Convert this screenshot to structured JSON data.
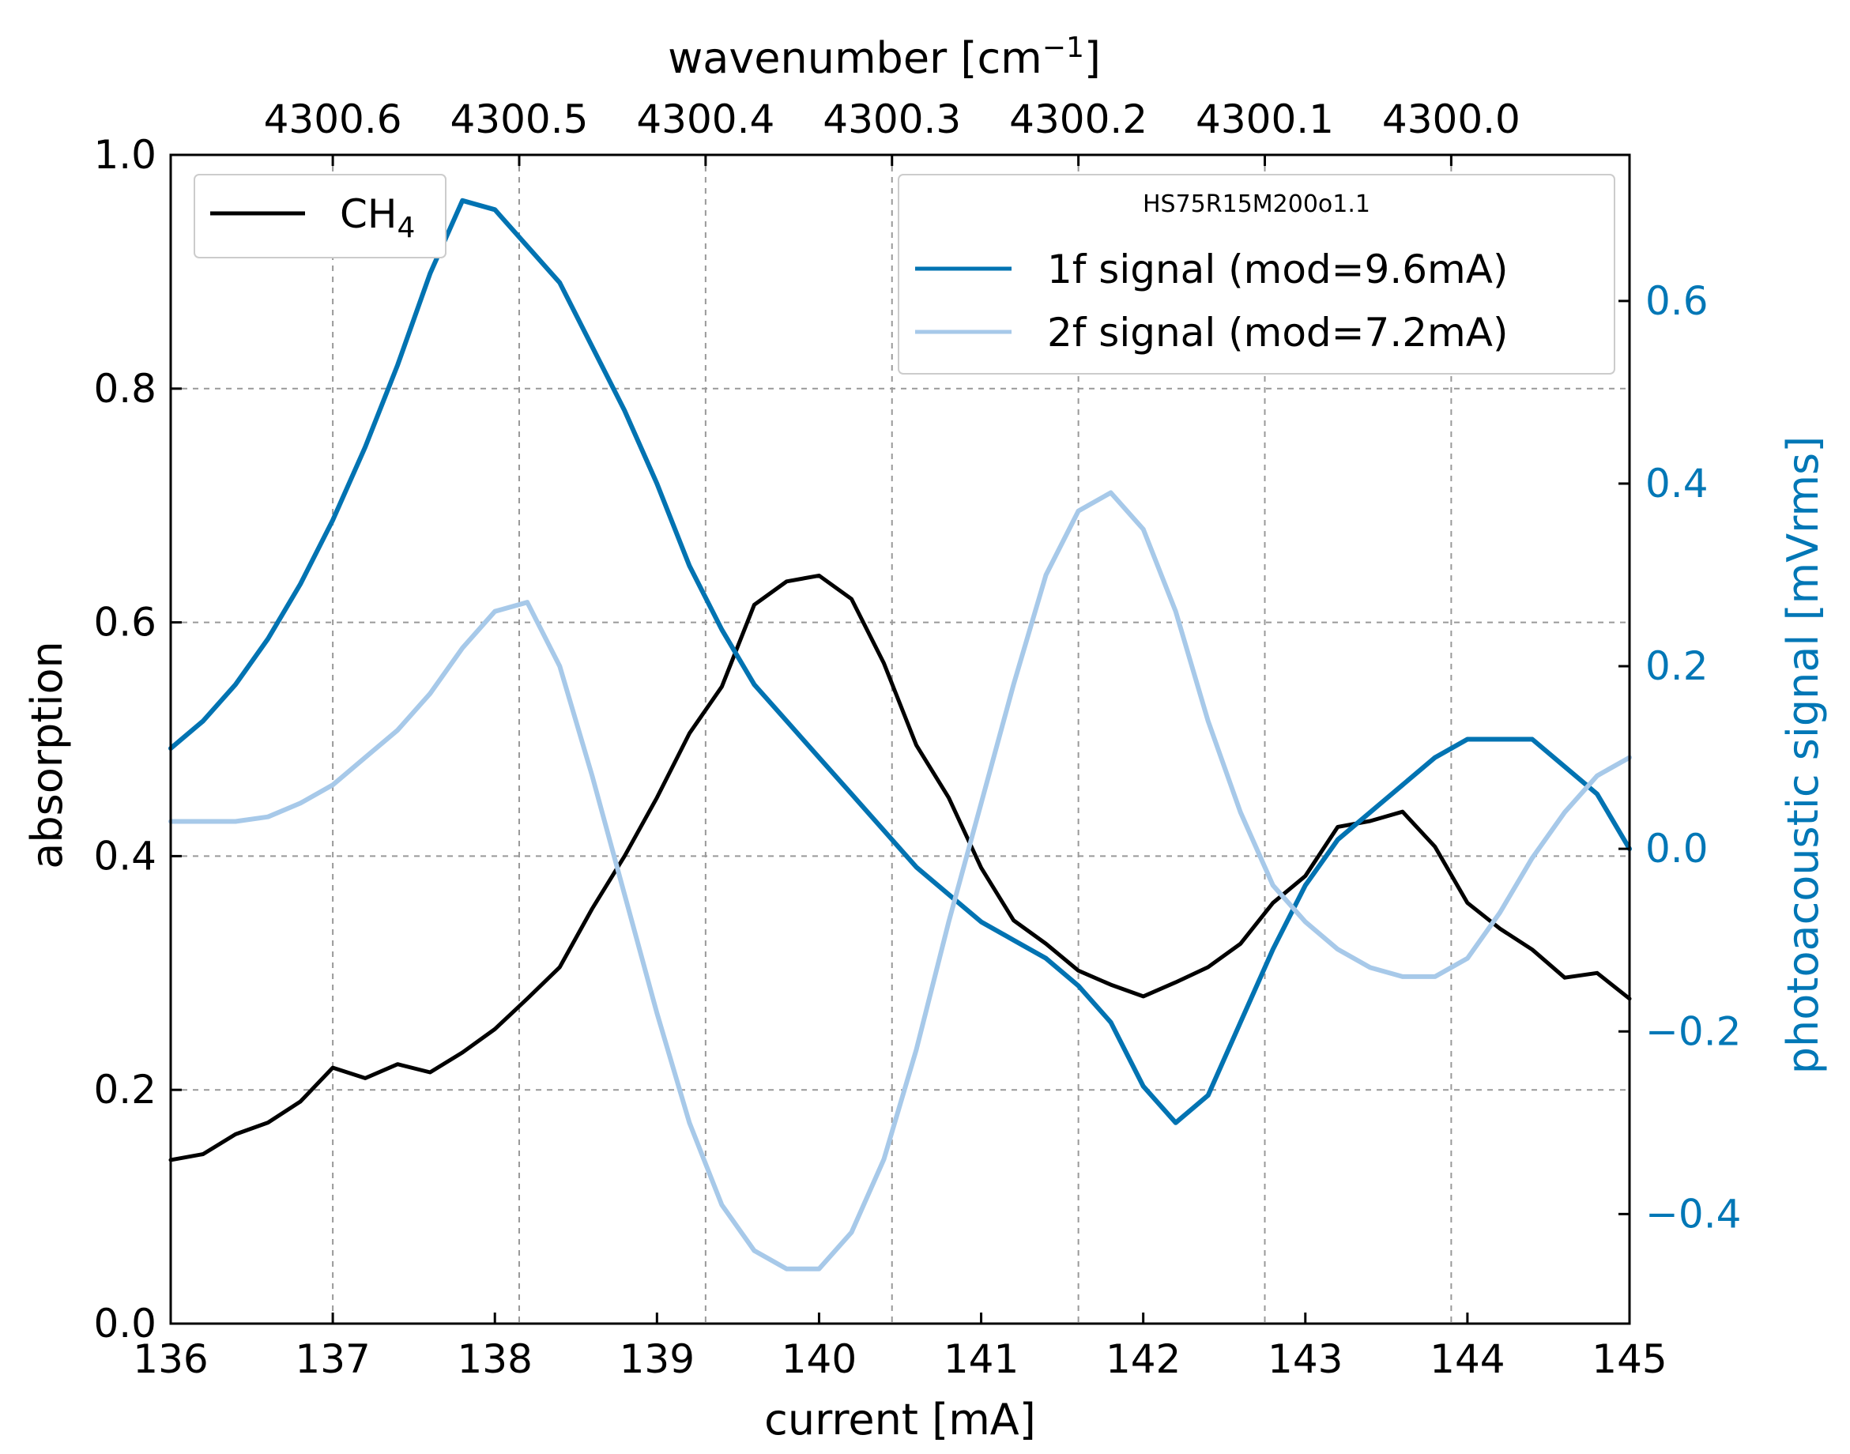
{
  "chart_data": {
    "type": "line",
    "x_axis": {
      "label": "current [mA]",
      "range": [
        136,
        145
      ],
      "ticks": [
        136,
        137,
        138,
        139,
        140,
        141,
        142,
        143,
        144,
        145
      ],
      "tick_labels": [
        "136",
        "137",
        "138",
        "139",
        "140",
        "141",
        "142",
        "143",
        "144",
        "145"
      ]
    },
    "top_axis": {
      "label_main": "wavenumber [cm",
      "label_sup": "−1",
      "label_end": "]",
      "ticks_current": [
        137.0,
        138.15,
        139.3,
        140.45,
        141.6,
        142.75,
        143.9
      ],
      "tick_labels": [
        "4300.6",
        "4300.5",
        "4300.4",
        "4300.3",
        "4300.2",
        "4300.1",
        "4300.0"
      ]
    },
    "y_axis_left": {
      "label": "absorption",
      "range": [
        0.0,
        1.0
      ],
      "ticks": [
        0.0,
        0.2,
        0.4,
        0.6,
        0.8,
        1.0
      ],
      "tick_labels": [
        "0.0",
        "0.2",
        "0.4",
        "0.6",
        "0.8",
        "1.0"
      ]
    },
    "y_axis_right": {
      "label": "photoacoustic signal [mVrms]",
      "range": [
        -0.52,
        0.76
      ],
      "ticks": [
        -0.4,
        -0.2,
        0.0,
        0.2,
        0.4,
        0.6
      ],
      "tick_labels": [
        "−0.4",
        "−0.2",
        "0.0",
        "0.2",
        "0.4",
        "0.6"
      ]
    },
    "grid": true,
    "series": [
      {
        "name": "CH4",
        "axis": "left",
        "color": "#000000",
        "x": [
          136.0,
          136.2,
          136.4,
          136.6,
          136.8,
          137.0,
          137.2,
          137.4,
          137.6,
          137.8,
          138.0,
          138.2,
          138.4,
          138.6,
          138.8,
          139.0,
          139.2,
          139.4,
          139.6,
          139.8,
          140.0,
          140.2,
          140.4,
          140.6,
          140.8,
          141.0,
          141.2,
          141.4,
          141.6,
          141.8,
          142.0,
          142.2,
          142.4,
          142.6,
          142.8,
          143.0,
          143.2,
          143.4,
          143.6,
          143.8,
          144.0,
          144.2,
          144.4,
          144.6,
          144.8,
          145.0
        ],
        "y": [
          0.14,
          0.145,
          0.162,
          0.172,
          0.19,
          0.219,
          0.21,
          0.222,
          0.215,
          0.232,
          0.252,
          0.278,
          0.305,
          0.355,
          0.4,
          0.45,
          0.505,
          0.545,
          0.615,
          0.635,
          0.64,
          0.62,
          0.565,
          0.495,
          0.45,
          0.39,
          0.345,
          0.325,
          0.302,
          0.29,
          0.28,
          0.292,
          0.305,
          0.325,
          0.36,
          0.383,
          0.425,
          0.43,
          0.438,
          0.408,
          0.36,
          0.338,
          0.32,
          0.296,
          0.3,
          0.278
        ]
      },
      {
        "name": "1f signal (mod=9.6mA)",
        "axis": "right",
        "color": "#0173b2",
        "x": [
          136.0,
          136.2,
          136.4,
          136.6,
          136.8,
          137.0,
          137.2,
          137.4,
          137.6,
          137.8,
          138.0,
          138.2,
          138.4,
          138.6,
          138.8,
          139.0,
          139.2,
          139.4,
          139.6,
          139.8,
          140.0,
          140.2,
          140.4,
          140.6,
          140.8,
          141.0,
          141.2,
          141.4,
          141.6,
          141.8,
          142.0,
          142.2,
          142.4,
          142.6,
          142.8,
          143.0,
          143.2,
          143.4,
          143.6,
          143.8,
          144.0,
          144.2,
          144.4,
          144.6,
          144.8,
          145.0
        ],
        "y": [
          0.11,
          0.14,
          0.18,
          0.23,
          0.29,
          0.36,
          0.44,
          0.53,
          0.63,
          0.71,
          0.7,
          0.66,
          0.62,
          0.55,
          0.48,
          0.4,
          0.31,
          0.24,
          0.18,
          0.14,
          0.1,
          0.06,
          0.02,
          -0.02,
          -0.05,
          -0.08,
          -0.1,
          -0.12,
          -0.15,
          -0.19,
          -0.26,
          -0.3,
          -0.27,
          -0.19,
          -0.11,
          -0.04,
          0.01,
          0.04,
          0.07,
          0.1,
          0.12,
          0.12,
          0.12,
          0.09,
          0.06,
          0.0
        ]
      },
      {
        "name": "2f signal (mod=7.2mA)",
        "axis": "right",
        "color": "#a7c9e9",
        "x": [
          136.0,
          136.2,
          136.4,
          136.6,
          136.8,
          137.0,
          137.2,
          137.4,
          137.6,
          137.8,
          138.0,
          138.2,
          138.4,
          138.6,
          138.8,
          139.0,
          139.2,
          139.4,
          139.6,
          139.8,
          140.0,
          140.2,
          140.4,
          140.6,
          140.8,
          141.0,
          141.2,
          141.4,
          141.6,
          141.8,
          142.0,
          142.2,
          142.4,
          142.6,
          142.8,
          143.0,
          143.2,
          143.4,
          143.6,
          143.8,
          144.0,
          144.2,
          144.4,
          144.6,
          144.8,
          145.0
        ],
        "y": [
          0.03,
          0.03,
          0.03,
          0.035,
          0.05,
          0.07,
          0.1,
          0.13,
          0.17,
          0.22,
          0.26,
          0.27,
          0.2,
          0.08,
          -0.05,
          -0.18,
          -0.3,
          -0.39,
          -0.44,
          -0.46,
          -0.46,
          -0.42,
          -0.34,
          -0.22,
          -0.08,
          0.05,
          0.18,
          0.3,
          0.37,
          0.39,
          0.35,
          0.26,
          0.14,
          0.04,
          -0.04,
          -0.08,
          -0.11,
          -0.13,
          -0.14,
          -0.14,
          -0.12,
          -0.07,
          -0.01,
          0.04,
          0.08,
          0.1
        ]
      }
    ],
    "legend_left": {
      "placement": "top-left",
      "entries": [
        {
          "label": "CH",
          "subscript": "4",
          "color": "#000000"
        }
      ]
    },
    "legend_right": {
      "placement": "top-right",
      "title": "HS75R15M200o1.1",
      "entries": [
        {
          "label": "1f signal (mod=9.6mA)",
          "color": "#0173b2"
        },
        {
          "label": "2f signal (mod=7.2mA)",
          "color": "#a7c9e9"
        }
      ]
    }
  }
}
